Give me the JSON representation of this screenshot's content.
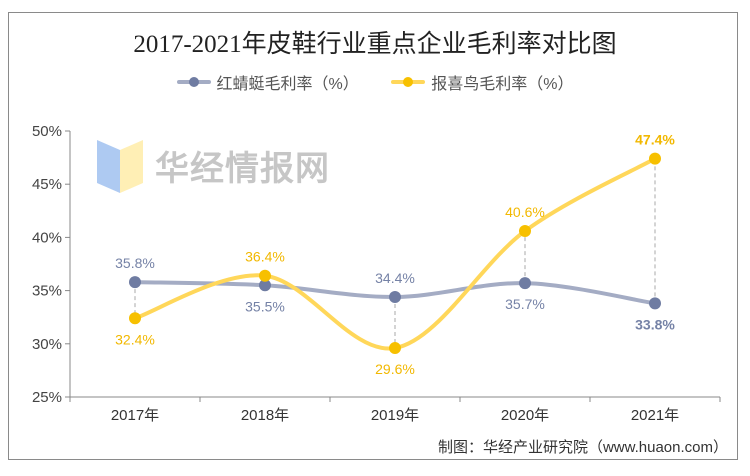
{
  "chart_data": {
    "type": "line",
    "title": "2017-2021年皮鞋行业重点企业毛利率对比图",
    "categories": [
      "2017年",
      "2018年",
      "2019年",
      "2020年",
      "2021年"
    ],
    "series": [
      {
        "name": "红蜻蜓毛利率（%）",
        "values": [
          35.8,
          35.5,
          34.4,
          35.7,
          33.8
        ],
        "labels": [
          "35.8%",
          "35.5%",
          "34.4%",
          "35.7%",
          "33.8%"
        ],
        "line_color": "#a4acc4",
        "marker_color": "#6f7ca2",
        "label_color": "#7582a6"
      },
      {
        "name": "报喜鸟毛利率（%）",
        "values": [
          32.4,
          36.4,
          29.6,
          40.6,
          47.4
        ],
        "labels": [
          "32.4%",
          "36.4%",
          "29.6%",
          "40.6%",
          "47.4%"
        ],
        "line_color": "#ffd75a",
        "marker_color": "#f7c000",
        "label_color": "#f2b800"
      }
    ],
    "ylim": [
      25,
      50
    ],
    "yticks": [
      "25%",
      "30%",
      "35%",
      "40%",
      "45%",
      "50%"
    ],
    "smooth": true,
    "grid": false,
    "legend": "top",
    "drop_lines": true
  },
  "source": "制图：华经产业研究院（www.huaon.com）",
  "watermark": "华经情报网"
}
